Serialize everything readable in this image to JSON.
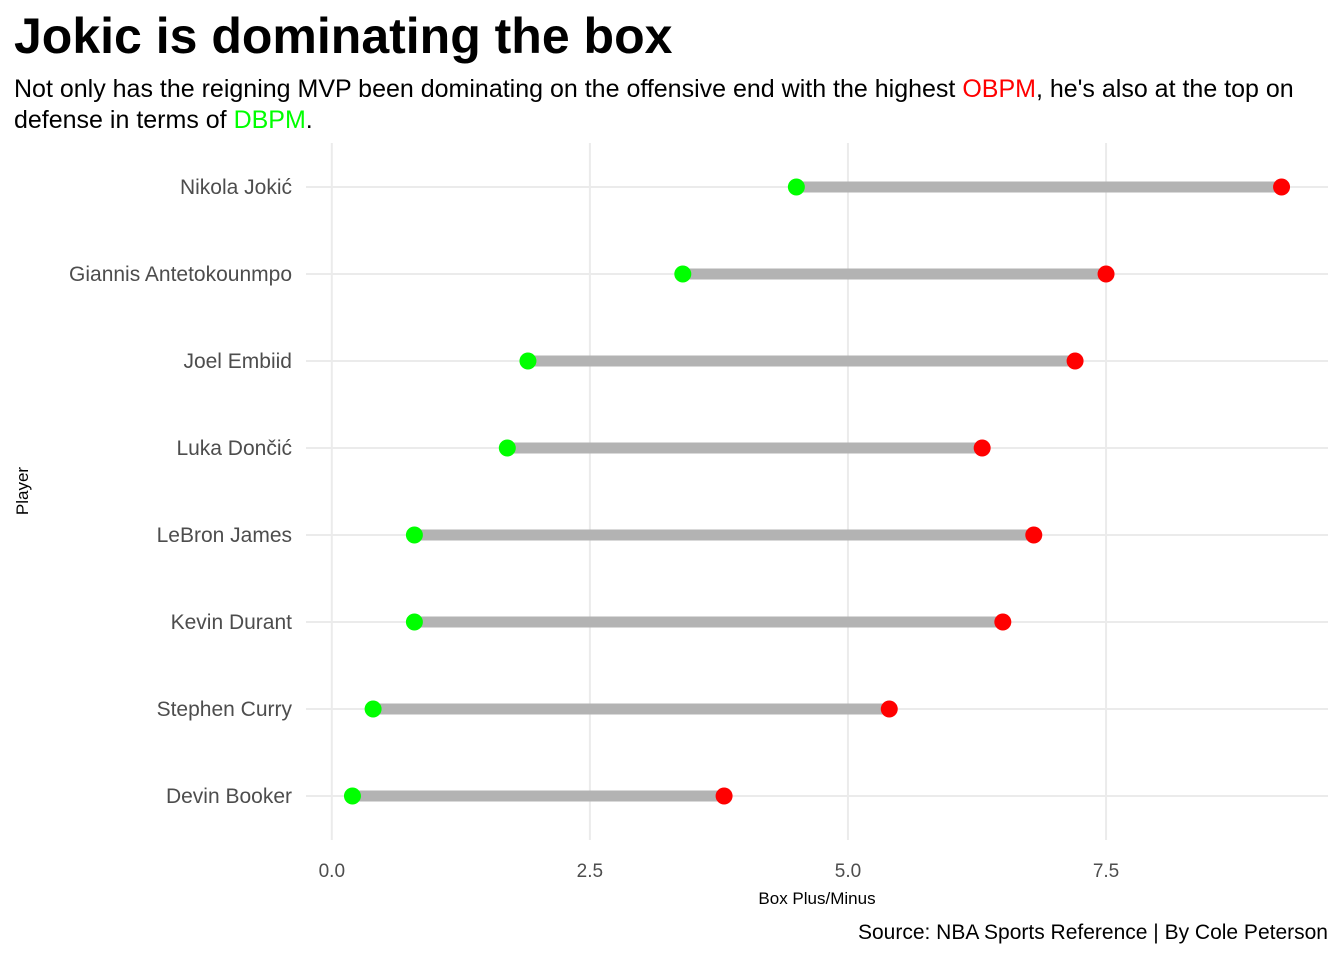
{
  "title": "Jokic is dominating the box",
  "subtitle": {
    "part1": "Not only has the reigning MVP been dominating on the offensive end with the highest ",
    "obpm": "OBPM",
    "part2": ", he's also at the top on defense in terms of ",
    "dbpm": "DBPM",
    "part3": "."
  },
  "caption": "Source: NBA Sports Reference | By Cole Peterson",
  "colors": {
    "obpm": "#ff0000",
    "dbpm": "#00ff00",
    "segment": "#b3b3b3",
    "grid": "#ebebeb"
  },
  "chart_data": {
    "type": "dumbbell",
    "xlabel": "Box Plus/Minus",
    "ylabel": "Player",
    "xlim": [
      -0.25,
      9.65
    ],
    "x_ticks": [
      0,
      2.5,
      5,
      7.5
    ],
    "x_tick_labels": [
      "0.0",
      "2.5",
      "5.0",
      "7.5"
    ],
    "grid": true,
    "categories": [
      "Nikola Jokić",
      "Giannis Antetokounmpo",
      "Joel Embiid",
      "Luka Dončić",
      "LeBron James",
      "Kevin Durant",
      "Stephen Curry",
      "Devin Booker"
    ],
    "series": [
      {
        "key": "dbpm",
        "values": [
          4.5,
          3.4,
          1.9,
          1.7,
          0.8,
          0.8,
          0.4,
          0.2
        ]
      },
      {
        "key": "obpm",
        "values": [
          9.2,
          7.5,
          7.2,
          6.3,
          6.8,
          6.5,
          5.4,
          3.8
        ]
      }
    ]
  }
}
